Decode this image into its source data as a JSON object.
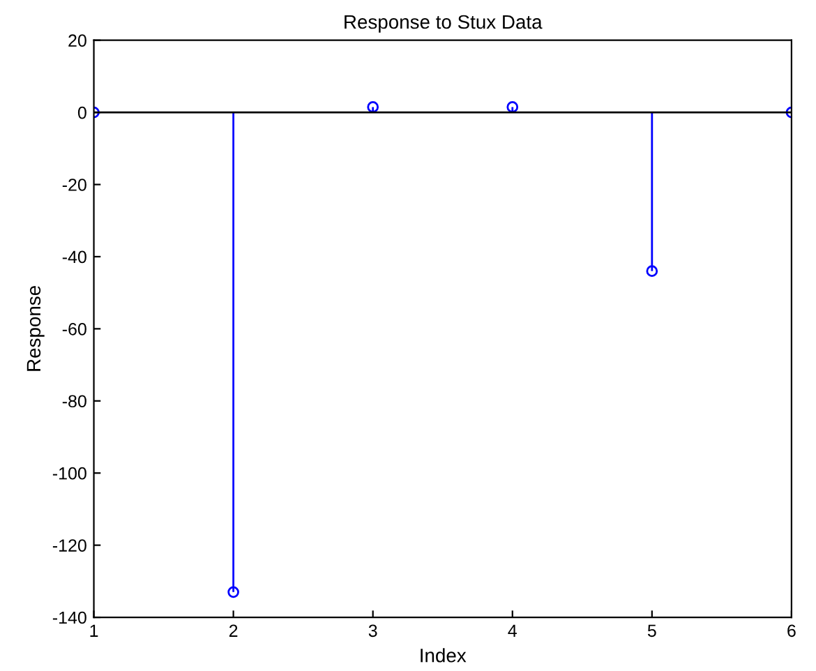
{
  "chart_data": {
    "type": "lollipop",
    "title": "Response to Stux Data",
    "xlabel": "Index",
    "ylabel": "Response",
    "x": [
      1,
      2,
      3,
      4,
      5,
      6
    ],
    "values": [
      0,
      -133,
      1.5,
      1.5,
      -44,
      0
    ],
    "color": "#0000ff",
    "marker": "circle",
    "xlim": [
      1,
      6
    ],
    "xticks": [
      1,
      2,
      3,
      4,
      5,
      6
    ],
    "ylim": [
      -140,
      20
    ],
    "yticks": [
      -140,
      -120,
      -100,
      -80,
      -60,
      -40,
      -20,
      0,
      20
    ],
    "grid": false,
    "legend": false
  }
}
